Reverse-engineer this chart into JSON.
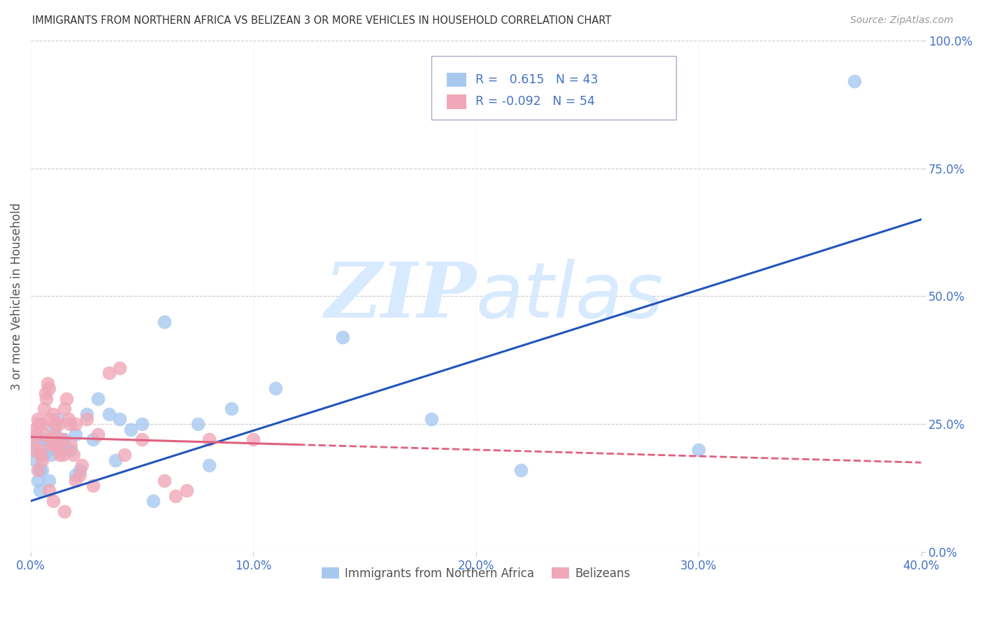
{
  "title": "IMMIGRANTS FROM NORTHERN AFRICA VS BELIZEAN 3 OR MORE VEHICLES IN HOUSEHOLD CORRELATION CHART",
  "source": "Source: ZipAtlas.com",
  "ylabel": "3 or more Vehicles in Household",
  "xlabel_vals": [
    0.0,
    10.0,
    20.0,
    30.0,
    40.0
  ],
  "ylabel_vals": [
    0.0,
    25.0,
    50.0,
    75.0,
    100.0
  ],
  "xlim": [
    0.0,
    40.0
  ],
  "ylim": [
    0.0,
    100.0
  ],
  "r_blue": 0.615,
  "n_blue": 43,
  "r_pink": -0.092,
  "n_pink": 54,
  "blue_color": "#A8C8F0",
  "pink_color": "#F0A8B8",
  "blue_line_color": "#2255BB",
  "pink_line_color": "#E06080",
  "title_color": "#333333",
  "axis_label_color": "#555555",
  "tick_color": "#4472C4",
  "grid_color": "#CCCCCC",
  "watermark_color": "#D8EAFF",
  "legend_label_blue": "Immigrants from Northern Africa",
  "legend_label_pink": "Belizeans",
  "blue_line_x0": 0.0,
  "blue_line_y0": 10.0,
  "blue_line_x1": 40.0,
  "blue_line_y1": 65.0,
  "pink_line_x0": 0.0,
  "pink_line_y0": 22.5,
  "pink_line_x1": 40.0,
  "pink_line_y1": 17.5,
  "pink_solid_end_x": 12.0,
  "blue_scatter_x": [
    0.1,
    0.2,
    0.3,
    0.4,
    0.5,
    0.6,
    0.8,
    1.0,
    1.2,
    1.5,
    1.8,
    2.0,
    2.5,
    3.0,
    3.5,
    4.0,
    5.0,
    6.0,
    7.5,
    9.0,
    11.0,
    14.0,
    18.0,
    22.0,
    30.0,
    0.3,
    0.5,
    0.7,
    0.9,
    1.1,
    1.3,
    1.6,
    2.2,
    2.8,
    3.8,
    5.5,
    37.0,
    0.4,
    0.8,
    1.4,
    2.0,
    4.5,
    8.0
  ],
  "blue_scatter_y": [
    20,
    18,
    22,
    16,
    22,
    19,
    20,
    24,
    26,
    22,
    20,
    23,
    27,
    30,
    27,
    26,
    25,
    45,
    25,
    28,
    32,
    42,
    26,
    16,
    20,
    14,
    16,
    22,
    19,
    23,
    22,
    20,
    16,
    22,
    18,
    10,
    92,
    12,
    14,
    21,
    15,
    24,
    17
  ],
  "pink_scatter_x": [
    0.1,
    0.2,
    0.3,
    0.4,
    0.5,
    0.6,
    0.7,
    0.8,
    0.9,
    1.0,
    1.1,
    1.2,
    1.3,
    1.4,
    1.5,
    1.6,
    1.7,
    1.8,
    1.9,
    2.0,
    2.2,
    2.5,
    3.0,
    3.5,
    4.0,
    5.0,
    6.0,
    7.0,
    10.0,
    0.15,
    0.25,
    0.35,
    0.45,
    0.55,
    0.65,
    0.75,
    0.85,
    0.95,
    1.05,
    1.15,
    1.25,
    1.45,
    1.75,
    2.0,
    2.3,
    2.8,
    4.2,
    6.5,
    0.3,
    0.5,
    0.8,
    1.0,
    1.5,
    8.0
  ],
  "pink_scatter_y": [
    22,
    24,
    26,
    20,
    25,
    28,
    30,
    32,
    22,
    27,
    25,
    21,
    19,
    22,
    28,
    30,
    26,
    21,
    19,
    25,
    15,
    26,
    23,
    35,
    36,
    22,
    14,
    12,
    22,
    20,
    23,
    25,
    19,
    23,
    31,
    33,
    26,
    21,
    23,
    21,
    25,
    19,
    25,
    14,
    17,
    13,
    19,
    11,
    16,
    18,
    12,
    10,
    8,
    22
  ]
}
